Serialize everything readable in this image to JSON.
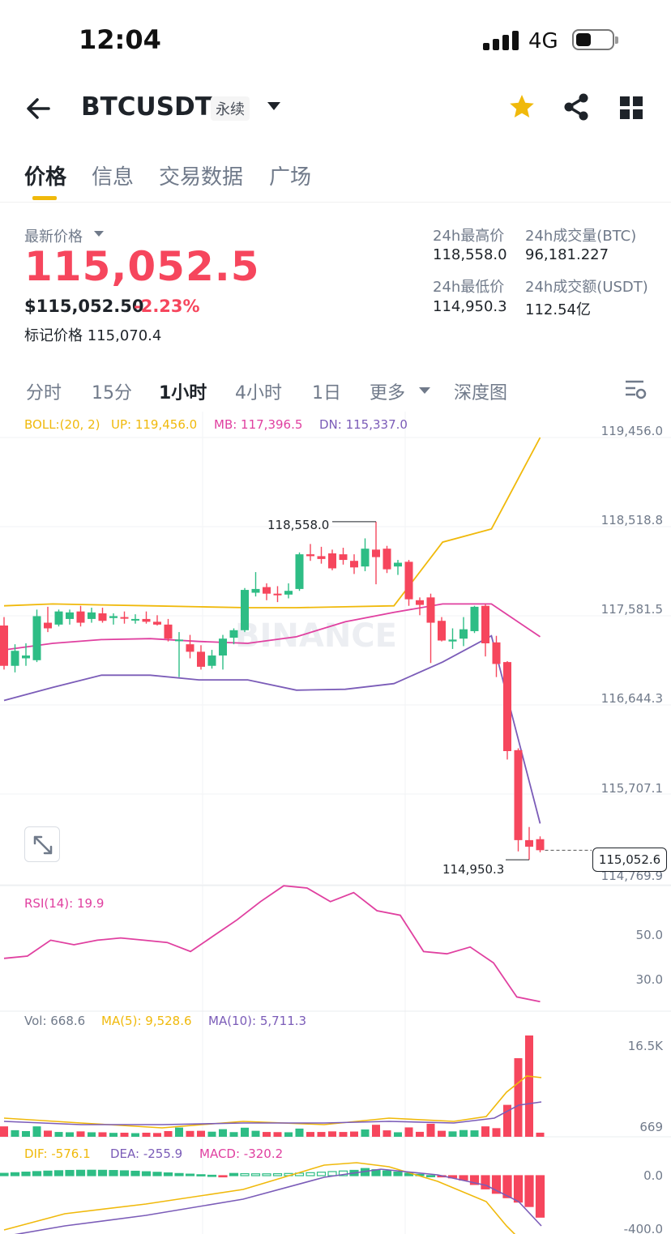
{
  "status_bar": {
    "time": "12:04",
    "network": "4G"
  },
  "header": {
    "symbol": "BTCUSDT",
    "contract_type": "永续",
    "icons": [
      "back-arrow-icon",
      "star-icon",
      "share-icon",
      "grid-icon"
    ],
    "star_color": "#f0b90b"
  },
  "tabs": [
    "价格",
    "信息",
    "交易数据",
    "广场"
  ],
  "price": {
    "last_label": "最新价格",
    "last_price": "115,052.5",
    "usd_price": "$115,052.50",
    "change_pct": "-2.23%",
    "mark_label": "标记价格",
    "mark_price": "115,070.4",
    "down_color": "#f6465d",
    "up_color": "#2ebd85"
  },
  "stats": {
    "high_label": "24h最高价",
    "high": "118,558.0",
    "vol_btc_label": "24h成交量(BTC)",
    "vol_btc": "96,181.227",
    "low_label": "24h最低价",
    "low": "114,950.3",
    "vol_usdt_label": "24h成交额(USDT)",
    "vol_usdt": "112.54亿"
  },
  "intervals": [
    "分时",
    "15分",
    "1小时",
    "4小时",
    "1日",
    "更多",
    "深度图"
  ],
  "chart": {
    "boll_label": "BOLL:(20, 2)",
    "up_label": "UP: 119,456.0",
    "mb_label": "MB: 117,396.5",
    "dn_label": "DN: 115,337.0",
    "y_labels": [
      "119,456.0",
      "118,518.8",
      "117,581.5",
      "116,644.3",
      "115,707.1",
      "114,769.9"
    ],
    "high_annotation": "118,558.0",
    "low_annotation": "114,950.3",
    "current_price_tag": "115,052.6",
    "watermark": "BINANCE",
    "rsi_label": "RSI(14): 19.9",
    "rsi_axis": [
      "50.0",
      "30.0"
    ],
    "vol_label": "Vol: 668.6",
    "vol_ma5_label": "MA(5): 9,528.6",
    "vol_ma10_label": "MA(10): 5,711.3",
    "vol_axis": [
      "16.5K",
      "669"
    ],
    "dif_label": "DIF: -576.1",
    "dea_label": "DEA: -255.9",
    "macd_label": "MACD: -320.2",
    "macd_axis": [
      "0.0",
      "-400.0"
    ],
    "colors": {
      "boll_up": "#f0b90b",
      "boll_mb": "#e040a0",
      "boll_dn": "#7b5cb8",
      "rsi": "#e040a0"
    }
  },
  "chart_data": {
    "type": "candlestick",
    "interval": "1小时",
    "ylim": [
      114769.9,
      119456.0
    ],
    "candles": [
      [
        117450,
        117540,
        116980,
        117020
      ],
      [
        117020,
        117250,
        116950,
        117180
      ],
      [
        117100,
        117260,
        117020,
        117130
      ],
      [
        117080,
        117620,
        117060,
        117550
      ],
      [
        117480,
        117650,
        117380,
        117420
      ],
      [
        117460,
        117620,
        117440,
        117600
      ],
      [
        117520,
        117620,
        117460,
        117590
      ],
      [
        117600,
        117660,
        117440,
        117480
      ],
      [
        117520,
        117640,
        117480,
        117590
      ],
      [
        117580,
        117640,
        117480,
        117500
      ],
      [
        117530,
        117580,
        117460,
        117550
      ],
      [
        117540,
        117600,
        117470,
        117530
      ],
      [
        117520,
        117570,
        117470,
        117520
      ],
      [
        117520,
        117600,
        117470,
        117490
      ],
      [
        117490,
        117560,
        117450,
        117460
      ],
      [
        117460,
        117520,
        117280,
        117310
      ],
      [
        117300,
        117380,
        116900,
        117300
      ],
      [
        117250,
        117350,
        117100,
        117170
      ],
      [
        117170,
        117240,
        116980,
        117010
      ],
      [
        117020,
        117190,
        116990,
        117130
      ],
      [
        117130,
        117350,
        116980,
        117310
      ],
      [
        117320,
        117420,
        117250,
        117400
      ],
      [
        117400,
        117850,
        117380,
        117830
      ],
      [
        117800,
        118020,
        117760,
        117840
      ],
      [
        117860,
        117900,
        117720,
        117790
      ],
      [
        117790,
        117870,
        117700,
        117780
      ],
      [
        117780,
        117900,
        117740,
        117820
      ],
      [
        117840,
        118230,
        117820,
        118210
      ],
      [
        118210,
        118320,
        118140,
        118190
      ],
      [
        118190,
        118290,
        118110,
        118160
      ],
      [
        118220,
        118260,
        118040,
        118060
      ],
      [
        118210,
        118280,
        118100,
        118150
      ],
      [
        118140,
        118210,
        118000,
        118070
      ],
      [
        118080,
        118380,
        118030,
        118270
      ],
      [
        118260,
        118558,
        117890,
        118180
      ],
      [
        118270,
        118300,
        118010,
        118050
      ],
      [
        118080,
        118150,
        117990,
        118120
      ],
      [
        118130,
        118150,
        117660,
        117730
      ],
      [
        117720,
        117750,
        117560,
        117670
      ],
      [
        117750,
        117790,
        117050,
        117480
      ],
      [
        117500,
        117540,
        117280,
        117290
      ],
      [
        117280,
        117420,
        117200,
        117300
      ],
      [
        117310,
        117540,
        117230,
        117410
      ],
      [
        117390,
        117660,
        117370,
        117650
      ],
      [
        117660,
        117680,
        117120,
        117260
      ],
      [
        117270,
        117340,
        116900,
        117040
      ],
      [
        117060,
        117070,
        116020,
        116110
      ],
      [
        116120,
        116140,
        115040,
        115160
      ],
      [
        115160,
        115300,
        114950.3,
        115090
      ],
      [
        115170,
        115200,
        115030,
        115052.5
      ]
    ],
    "boll_up": [
      117660,
      117680,
      117670,
      117660,
      117650,
      117640,
      117640,
      117650,
      117660,
      118340,
      118480,
      119456.0
    ],
    "boll_mb": [
      117190,
      117260,
      117300,
      117310,
      117280,
      117260,
      117330,
      117490,
      117590,
      117680,
      117680,
      117330
    ],
    "boll_dn": [
      116650,
      116790,
      116920,
      116920,
      116870,
      116870,
      116760,
      116770,
      116830,
      117060,
      117340,
      115337.0
    ],
    "rsi": [
      39,
      40,
      47,
      45,
      47,
      48,
      47,
      46,
      42,
      49,
      56,
      64,
      71,
      70,
      64,
      68,
      60,
      58,
      42,
      41,
      44,
      37,
      22,
      19.9
    ],
    "volume_series": {
      "last": 668.6,
      "ma5": 9528.6,
      "ma10": 5711.3,
      "ymax": 16500
    },
    "macd_series": {
      "dif": -576.1,
      "dea": -255.9,
      "macd": -320.2
    }
  }
}
